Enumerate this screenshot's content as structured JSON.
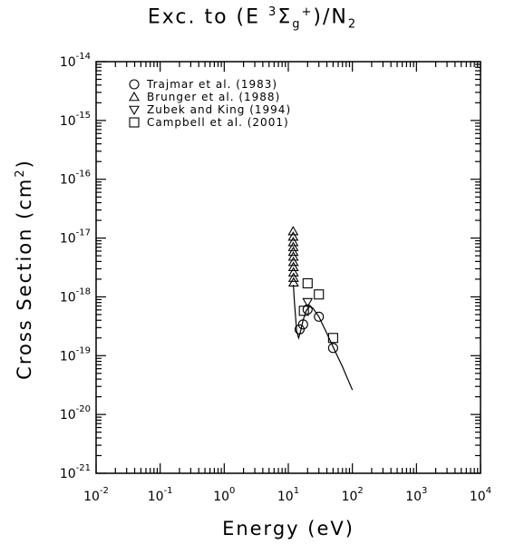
{
  "chart_data": {
    "type": "scatter",
    "title": {
      "prefix": "Exc. to (E ",
      "sup1": "3",
      "sigma": "Σ",
      "sub": "g",
      "sup2": "+",
      "suffix": ")/N",
      "sub2": "2"
    },
    "xlabel": "Energy (eV)",
    "ylabel_text": "Cross Section (cm",
    "ylabel_sup": "2",
    "ylabel_close": ")",
    "xscale": "log",
    "yscale": "log",
    "xlim": [
      0.01,
      10000
    ],
    "ylim": [
      1e-21,
      1e-14
    ],
    "x_ticks": [
      {
        "base": "10",
        "exp": "-2",
        "value": 0.01
      },
      {
        "base": "10",
        "exp": "-1",
        "value": 0.1
      },
      {
        "base": "10",
        "exp": "0",
        "value": 1
      },
      {
        "base": "10",
        "exp": "1",
        "value": 10
      },
      {
        "base": "10",
        "exp": "2",
        "value": 100
      },
      {
        "base": "10",
        "exp": "3",
        "value": 1000
      },
      {
        "base": "10",
        "exp": "4",
        "value": 10000
      }
    ],
    "y_ticks": [
      {
        "base": "10",
        "exp": "-14",
        "value": 1e-14
      },
      {
        "base": "10",
        "exp": "-15",
        "value": 1e-15
      },
      {
        "base": "10",
        "exp": "-16",
        "value": 1e-16
      },
      {
        "base": "10",
        "exp": "-17",
        "value": 1e-17
      },
      {
        "base": "10",
        "exp": "-18",
        "value": 1e-18
      },
      {
        "base": "10",
        "exp": "-19",
        "value": 1e-19
      },
      {
        "base": "10",
        "exp": "-20",
        "value": 1e-20
      },
      {
        "base": "10",
        "exp": "-21",
        "value": 1e-21
      }
    ],
    "legend_placement": "top-left",
    "grid": false,
    "series": [
      {
        "name": "Trajmar et al. (1983)",
        "marker": "circle",
        "points": [
          {
            "x": 15,
            "y": 2.8e-19
          },
          {
            "x": 17,
            "y": 3.4e-19
          },
          {
            "x": 20,
            "y": 6.1e-19
          },
          {
            "x": 30,
            "y": 4.6e-19
          },
          {
            "x": 50,
            "y": 1.35e-19
          }
        ]
      },
      {
        "name": "Brunger et al. (1988)",
        "marker": "triangle-up",
        "points": [
          {
            "x": 11.9,
            "y": 1.3e-17
          },
          {
            "x": 11.92,
            "y": 1.05e-17
          },
          {
            "x": 11.94,
            "y": 8.5e-18
          },
          {
            "x": 11.96,
            "y": 7e-18
          },
          {
            "x": 11.98,
            "y": 5.8e-18
          },
          {
            "x": 12.0,
            "y": 4.8e-18
          },
          {
            "x": 12.02,
            "y": 3.9e-18
          },
          {
            "x": 12.04,
            "y": 3.2e-18
          },
          {
            "x": 12.06,
            "y": 2.6e-18
          },
          {
            "x": 12.08,
            "y": 2.1e-18
          },
          {
            "x": 12.1,
            "y": 1.75e-18
          }
        ]
      },
      {
        "name": "Zubek and King (1994)",
        "marker": "triangle-down",
        "points": [
          {
            "x": 20,
            "y": 8.2e-19
          }
        ]
      },
      {
        "name": "Campbell et al. (2001)",
        "marker": "square",
        "points": [
          {
            "x": 17.5,
            "y": 5.8e-19
          },
          {
            "x": 20,
            "y": 1.7e-18
          },
          {
            "x": 30,
            "y": 1.1e-18
          },
          {
            "x": 50,
            "y": 2e-19
          }
        ]
      },
      {
        "name": "",
        "marker": "line",
        "points": [
          {
            "x": 12.0,
            "y": 1.6e-18
          },
          {
            "x": 12.5,
            "y": 8e-19
          },
          {
            "x": 13.5,
            "y": 2.6e-19
          },
          {
            "x": 14.5,
            "y": 2e-19
          },
          {
            "x": 15.5,
            "y": 2.6e-19
          },
          {
            "x": 17,
            "y": 4e-19
          },
          {
            "x": 19,
            "y": 5.8e-19
          },
          {
            "x": 21,
            "y": 6.8e-19
          },
          {
            "x": 24,
            "y": 6.5e-19
          },
          {
            "x": 30,
            "y": 4.6e-19
          },
          {
            "x": 40,
            "y": 2.4e-19
          },
          {
            "x": 50,
            "y": 1.4e-19
          },
          {
            "x": 70,
            "y": 6.5e-20
          },
          {
            "x": 100,
            "y": 2.6e-20
          }
        ]
      }
    ]
  }
}
